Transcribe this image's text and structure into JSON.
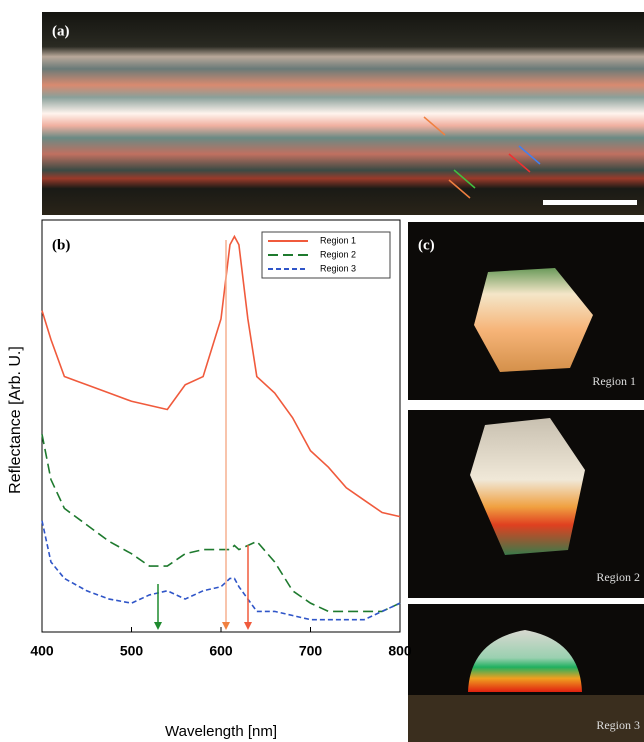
{
  "panels": {
    "a": {
      "label": "(a)"
    },
    "c": {
      "label": "(c)",
      "regions": [
        "Region 1",
        "Region 2",
        "Region 3"
      ]
    }
  },
  "chart_data": {
    "type": "line",
    "label": "(b)",
    "x_label": "Wavelength [nm]",
    "y_label": "Reflectance [Arb. U.]",
    "x": [
      400,
      410,
      425,
      450,
      475,
      500,
      520,
      540,
      560,
      580,
      600,
      610,
      615,
      620,
      630,
      640,
      660,
      680,
      700,
      720,
      740,
      760,
      780,
      800
    ],
    "xlim": [
      400,
      800
    ],
    "xticks": [
      400,
      500,
      600,
      700,
      800
    ],
    "ylim": [
      0,
      1
    ],
    "legend": "upper-right",
    "series": [
      {
        "name": "Region 1",
        "color": "#f05a3c",
        "dash": "solid",
        "values": [
          0.78,
          0.71,
          0.62,
          0.6,
          0.58,
          0.56,
          0.55,
          0.54,
          0.6,
          0.62,
          0.76,
          0.94,
          0.96,
          0.94,
          0.76,
          0.62,
          0.58,
          0.52,
          0.44,
          0.4,
          0.35,
          0.32,
          0.29,
          0.28
        ]
      },
      {
        "name": "Region 2",
        "color": "#1e7a2e",
        "dash": "dashed",
        "values": [
          0.48,
          0.37,
          0.3,
          0.26,
          0.22,
          0.19,
          0.16,
          0.16,
          0.19,
          0.2,
          0.2,
          0.2,
          0.21,
          0.2,
          0.21,
          0.22,
          0.17,
          0.1,
          0.07,
          0.05,
          0.05,
          0.05,
          0.05,
          0.07
        ]
      },
      {
        "name": "Region 3",
        "color": "#2f55c8",
        "dash": "dotted",
        "values": [
          0.27,
          0.17,
          0.13,
          0.1,
          0.08,
          0.07,
          0.09,
          0.1,
          0.08,
          0.1,
          0.11,
          0.13,
          0.13,
          0.11,
          0.08,
          0.05,
          0.05,
          0.04,
          0.03,
          0.03,
          0.03,
          0.03,
          0.05,
          0.07
        ]
      }
    ]
  }
}
